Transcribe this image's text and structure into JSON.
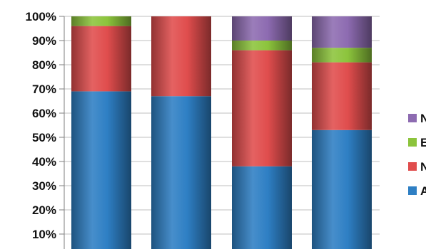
{
  "chart_data": {
    "type": "bar",
    "stacked": true,
    "percent_axis": true,
    "categories": [
      "",
      "",
      "",
      ""
    ],
    "series": [
      {
        "name": "A",
        "color": "#2e7fc4",
        "values": [
          69,
          67,
          38,
          53
        ]
      },
      {
        "name": "N",
        "color": "#e04d4d",
        "values": [
          27,
          33,
          48,
          28
        ]
      },
      {
        "name": "E",
        "color": "#8cc43c",
        "values": [
          4,
          0,
          4,
          6
        ]
      },
      {
        "name": "N",
        "color": "#8d6bb1",
        "values": [
          0,
          0,
          10,
          13
        ]
      }
    ],
    "y_ticks": [
      "10%",
      "20%",
      "30%",
      "40%",
      "50%",
      "60%",
      "70%",
      "80%",
      "90%",
      "100%"
    ],
    "ylim": [
      0,
      100
    ],
    "legend_position": "right",
    "grid": true
  }
}
